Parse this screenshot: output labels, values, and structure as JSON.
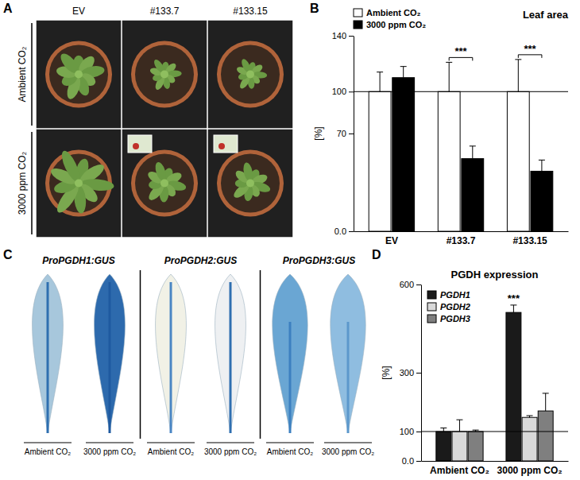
{
  "panel_labels": [
    "A",
    "B",
    "C",
    "D"
  ],
  "photo_panel_a": {
    "columns": [
      "EV",
      "#133.7",
      "#133.15"
    ],
    "rows": [
      "Ambient CO₂",
      "3000 ppm CO₂"
    ]
  },
  "photo_panel_c": {
    "constructs": [
      "ProPGDH1:GUS",
      "ProPGDH2:GUS",
      "ProPGDH3:GUS"
    ],
    "conditions": [
      "Ambient CO₂",
      "3000 ppm CO₂"
    ]
  },
  "chart_data": [
    {
      "type": "bar",
      "title": "Leaf area",
      "y_label": "[%]",
      "categories": [
        "EV",
        "#133.7",
        "#133.15"
      ],
      "series": [
        {
          "name": "Ambient CO₂",
          "color": "#ffffff",
          "values": [
            100,
            100,
            100
          ],
          "errors": [
            14,
            21,
            23
          ]
        },
        {
          "name": "3000 ppm CO₂",
          "color": "#000000",
          "values": [
            110,
            52,
            43
          ],
          "errors": [
            8,
            9,
            8
          ]
        }
      ],
      "ylim": [
        0,
        140
      ],
      "yticks": [
        {
          "value": 0,
          "label": "0.0"
        },
        70,
        100,
        140
      ],
      "reference": 100,
      "legend": "upper left",
      "annotations": [
        {
          "text": "***",
          "category": 1
        },
        {
          "text": "***",
          "category": 2
        }
      ]
    },
    {
      "type": "bar",
      "title": "PGDH expression",
      "y_label": "[%]",
      "categories": [
        "Ambient CO₂",
        "3000 ppm CO₂"
      ],
      "series": [
        {
          "name": "PGDH1",
          "color": "#1a1a1a",
          "values": [
            100,
            505
          ],
          "errors": [
            12,
            25
          ]
        },
        {
          "name": "PGDH2",
          "color": "#d9d9d9",
          "values": [
            100,
            148
          ],
          "errors": [
            40,
            6
          ]
        },
        {
          "name": "PGDH3",
          "color": "#7f7f7f",
          "values": [
            100,
            170
          ],
          "errors": [
            5,
            60
          ]
        }
      ],
      "ylim": [
        0,
        600
      ],
      "yticks": [
        {
          "value": 0,
          "label": "0.0"
        },
        100,
        300,
        600
      ],
      "reference": 100,
      "legend": "upper left",
      "annotations": [
        {
          "text": "***",
          "category": 1,
          "series": 0
        }
      ]
    }
  ]
}
